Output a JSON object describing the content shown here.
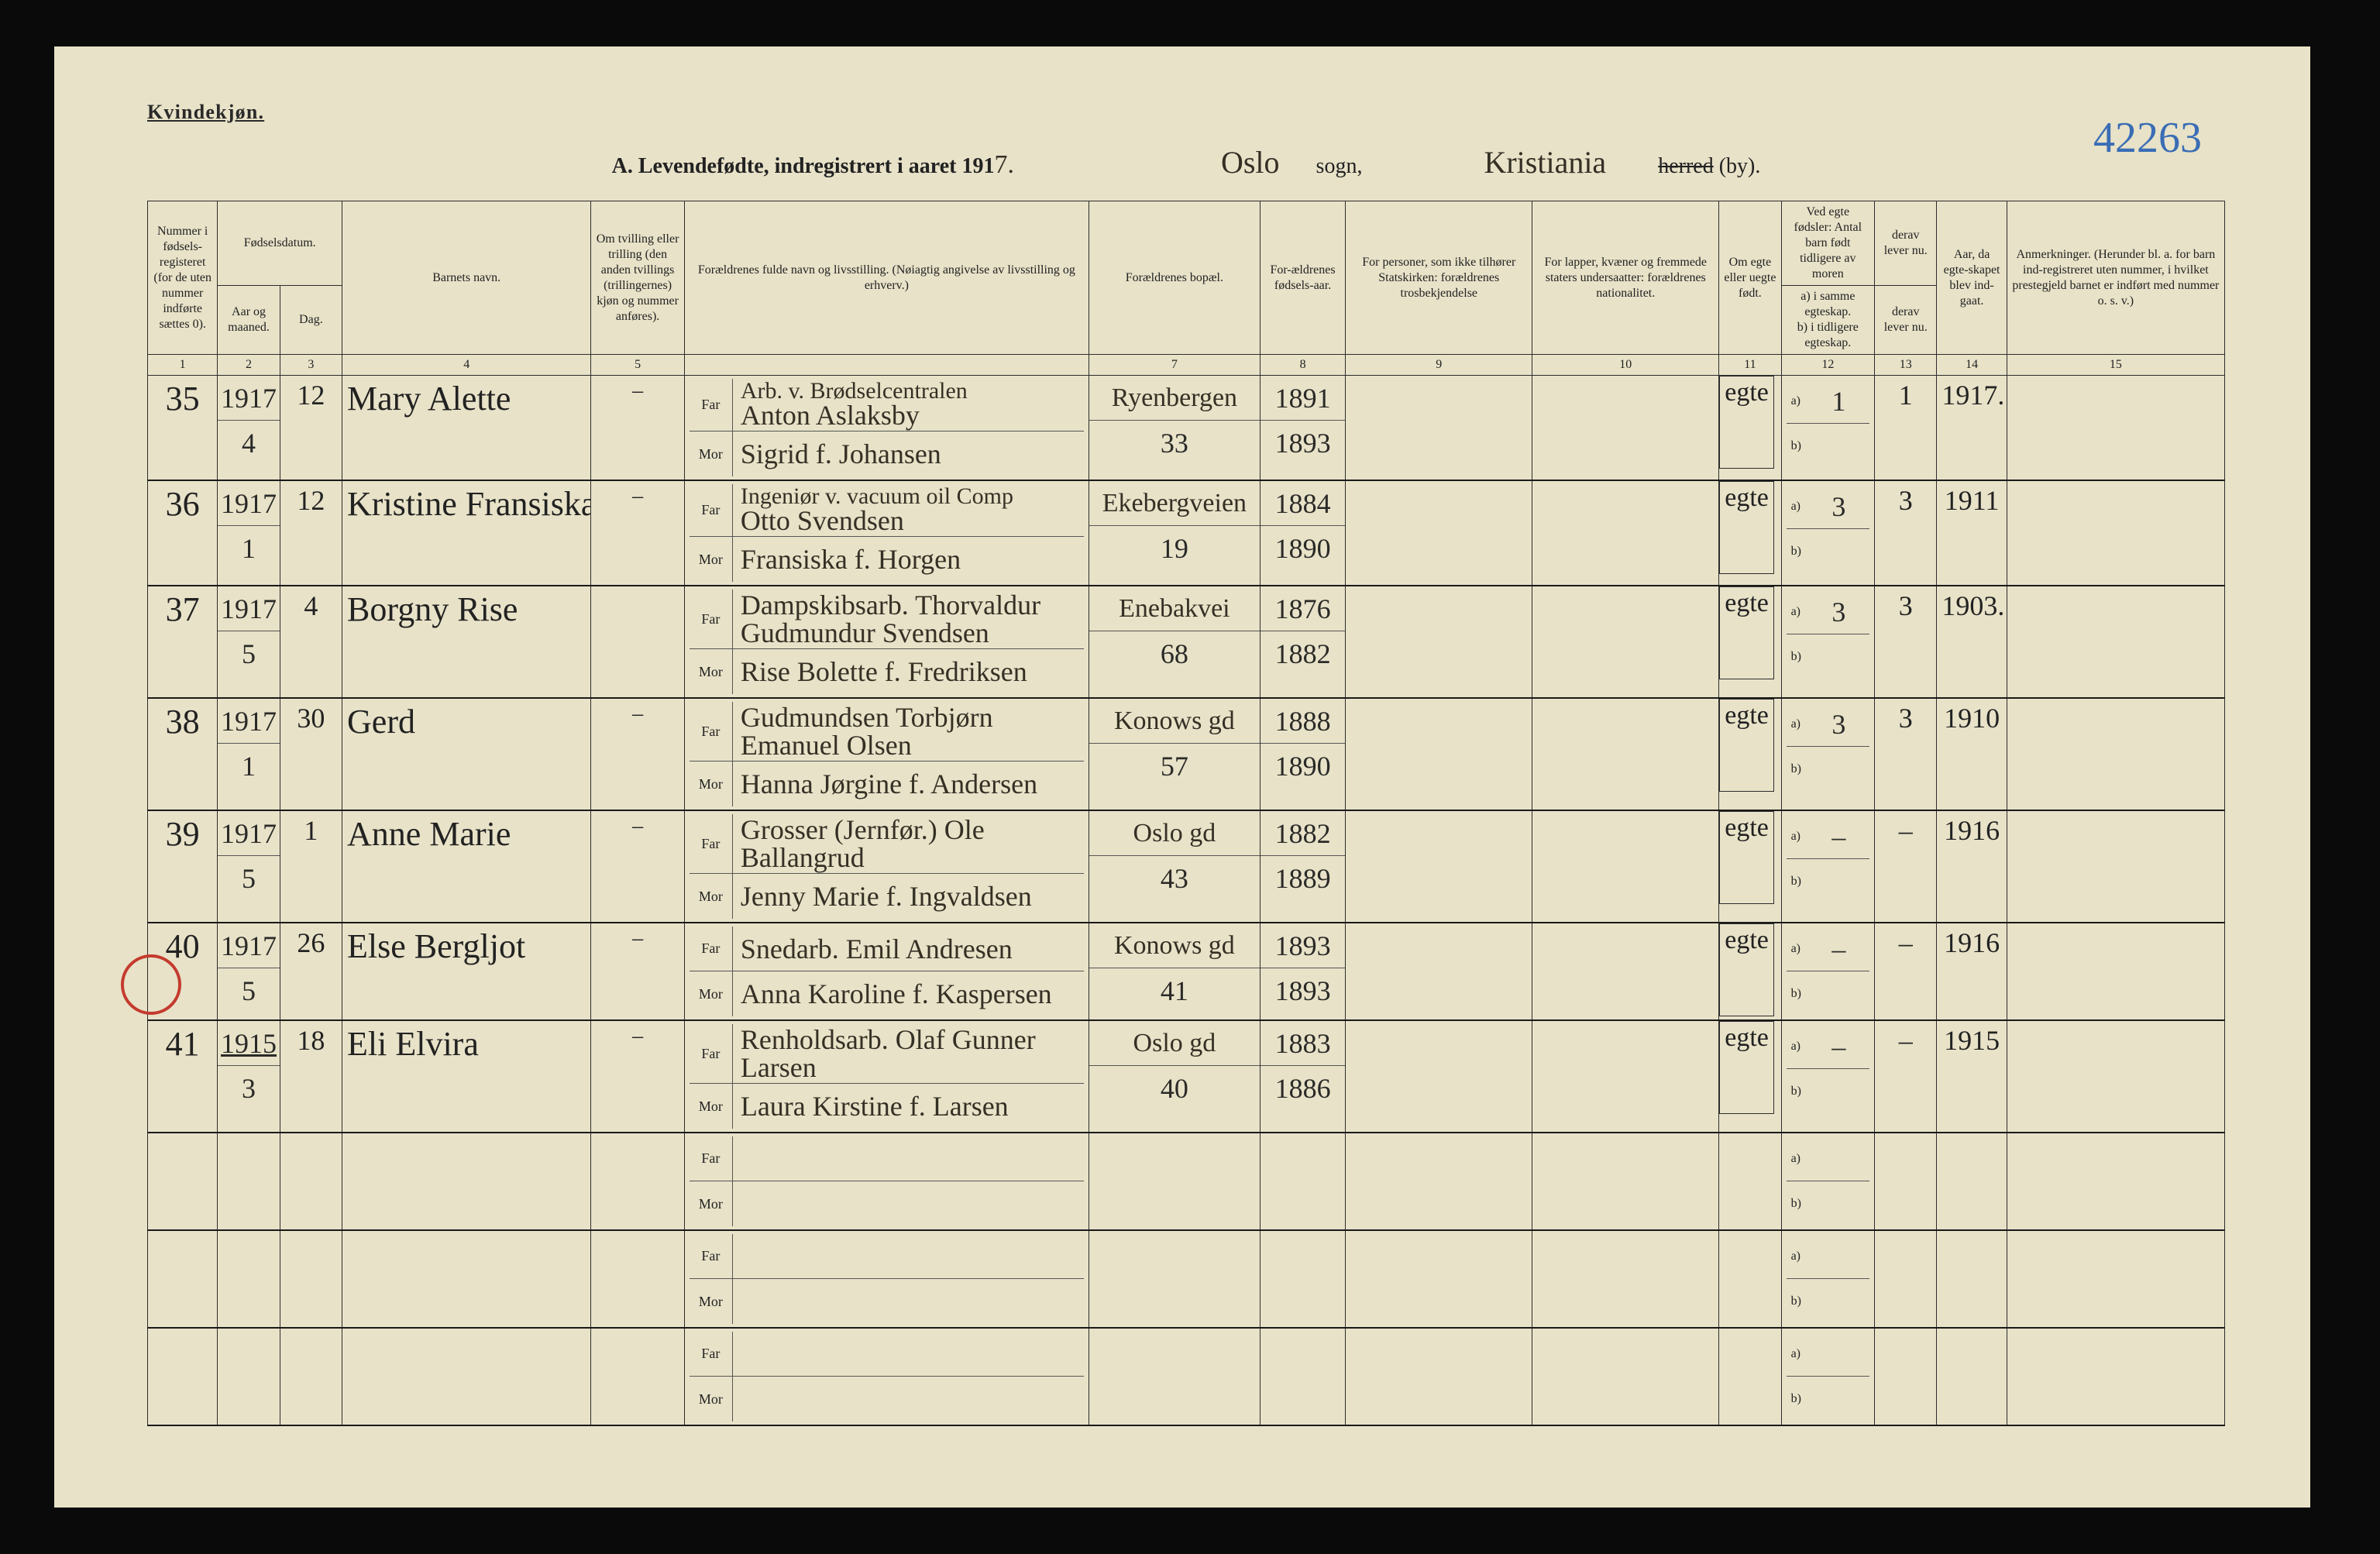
{
  "background_color": "#e8e2c8",
  "text_color": "#2a2a2a",
  "rule_color": "#1a1a1a",
  "circle_color": "#c43b2e",
  "header": {
    "gender": "Kvindekjøn.",
    "section_letter": "A.",
    "title_main": "Levendefødte, indregistrert i aaret 191",
    "year_digit": "7.",
    "sogn_word": "sogn,",
    "herred_word": "herred",
    "by_word": "(by).",
    "sogn_hand": "Oslo",
    "by_hand": "Kristiania",
    "page_number": "42263"
  },
  "column_headers": {
    "c1": "Nummer i fødsels-registeret (for de uten nummer indførte sættes 0).",
    "c2_top": "Fødselsdatum.",
    "c2a": "Aar og maaned.",
    "c2b": "Dag.",
    "c4": "Barnets navn.",
    "c5": "Om tvilling eller trilling (den anden tvillings (trillingernes) kjøn og nummer anføres).",
    "c6": "Forældrenes fulde navn og livsstilling.\n(Nøiagtig angivelse av livsstilling og erhverv.)",
    "c7": "Forældrenes bopæl.",
    "c8": "For-ældrenes fødsels-aar.",
    "c9": "For personer, som ikke tilhører Statskirken:\nforældrenes trosbekjendelse",
    "c10": "For lapper, kvæner og fremmede staters undersaatter:\nforældrenes nationalitet.",
    "c11": "Om egte eller uegte født.",
    "c12_top": "Ved egte fødsler:\nAntal barn født tidligere av moren",
    "c12a": "a) i samme egteskap.",
    "c12b": "b) i tidligere egteskap.",
    "c13_top": "derav lever nu.",
    "c13b": "derav lever nu.",
    "c14": "Aar, da egte-skapet blev ind-gaat.",
    "c15": "Anmerkninger.\n(Herunder bl. a. for barn ind-registreret uten nummer, i hvilket prestegjeld barnet er indført med nummer o. s. v.)"
  },
  "column_numbers": [
    "1",
    "2",
    "3",
    "4",
    "5",
    "",
    "7",
    "8",
    "9",
    "10",
    "11",
    "12",
    "13",
    "14",
    "15"
  ],
  "far_label": "Far",
  "mor_label": "Mor",
  "a_label": "a)",
  "b_label": "b)",
  "rows": [
    {
      "nr": "35",
      "aar": "1917",
      "mnd": "4",
      "dag": "12",
      "navn": "Mary Alette",
      "tvilling": "–",
      "occupation": "Arb. v. Brødselcentralen",
      "far": "Anton Aslaksby",
      "mor": "Sigrid f. Johansen",
      "bopel_top": "Ryenbergen",
      "bopel_bot": "33",
      "far_aar": "1891",
      "mor_aar": "1893",
      "egte": "egte",
      "a": "1",
      "der": "1",
      "egt_aar": "1917."
    },
    {
      "nr": "36",
      "aar": "1917",
      "mnd": "1",
      "dag": "12",
      "navn": "Kristine Fransiska",
      "tvilling": "–",
      "occupation": "Ingeniør v. vacuum oil Comp",
      "far": "Otto Svendsen",
      "mor": "Fransiska f. Horgen",
      "bopel_top": "Ekebergveien",
      "bopel_bot": "19",
      "far_aar": "1884",
      "mor_aar": "1890",
      "egte": "egte",
      "a": "3",
      "der": "3",
      "egt_aar": "1911"
    },
    {
      "nr": "37",
      "aar": "1917",
      "mnd": "5",
      "dag": "4",
      "navn": "Borgny Rise",
      "tvilling": "",
      "occupation": "",
      "far": "Dampskibsarb. Thorvaldur Gudmundur Svendsen",
      "mor": "Rise Bolette f. Fredriksen",
      "bopel_top": "Enebakvei",
      "bopel_bot": "68",
      "far_aar": "1876",
      "mor_aar": "1882",
      "egte": "egte",
      "a": "3",
      "der": "3",
      "egt_aar": "1903."
    },
    {
      "nr": "38",
      "aar": "1917",
      "mnd": "1",
      "dag": "30",
      "navn": "Gerd",
      "tvilling": "–",
      "occupation": "",
      "far": "Gudmundsen Torbjørn Emanuel Olsen",
      "mor": "Hanna Jørgine f. Andersen",
      "bopel_top": "Konows gd",
      "bopel_bot": "57",
      "far_aar": "1888",
      "mor_aar": "1890",
      "egte": "egte",
      "a": "3",
      "der": "3",
      "egt_aar": "1910"
    },
    {
      "nr": "39",
      "aar": "1917",
      "mnd": "5",
      "dag": "1",
      "navn": "Anne Marie",
      "tvilling": "–",
      "occupation": "",
      "far": "Grosser (Jernfør.) Ole Ballangrud",
      "mor": "Jenny Marie f. Ingvaldsen",
      "bopel_top": "Oslo gd",
      "bopel_bot": "43",
      "far_aar": "1882",
      "mor_aar": "1889",
      "egte": "egte",
      "a": "–",
      "der": "–",
      "egt_aar": "1916"
    },
    {
      "nr": "40",
      "aar": "1917",
      "mnd": "5",
      "dag": "26",
      "navn": "Else Bergljot",
      "tvilling": "–",
      "occupation": "",
      "far": "Snedarb. Emil Andresen",
      "mor": "Anna Karoline f. Kaspersen",
      "bopel_top": "Konows gd",
      "bopel_bot": "41",
      "far_aar": "1893",
      "mor_aar": "1893",
      "egte": "egte",
      "a": "–",
      "der": "–",
      "egt_aar": "1916"
    },
    {
      "nr": "41",
      "aar": "1915",
      "aar_underline": true,
      "mnd": "3",
      "dag": "18",
      "navn": "Eli Elvira",
      "tvilling": "–",
      "occupation": "",
      "far": "Renholdsarb. Olaf Gunner Larsen",
      "mor": "Laura Kirstine f. Larsen",
      "bopel_top": "Oslo gd",
      "bopel_bot": "40",
      "far_aar": "1883",
      "mor_aar": "1886",
      "egte": "egte",
      "a": "–",
      "der": "–",
      "egt_aar": "1915"
    },
    {
      "empty": true
    },
    {
      "empty": true
    },
    {
      "empty": true
    }
  ]
}
